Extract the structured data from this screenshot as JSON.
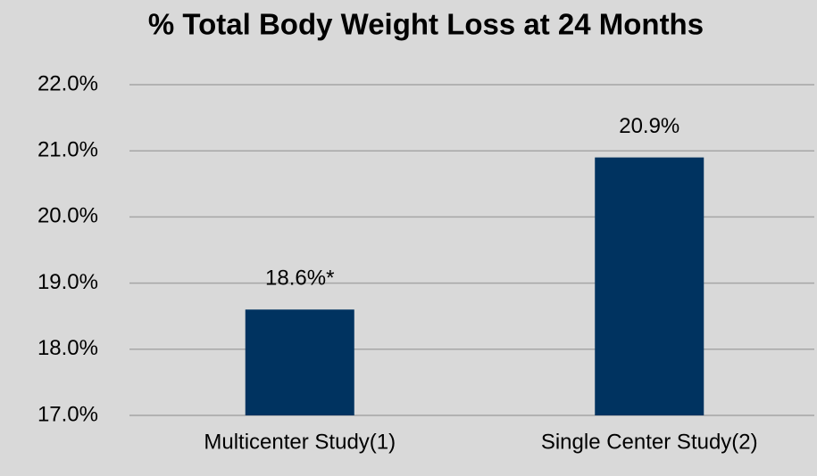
{
  "chart_data": {
    "type": "bar",
    "title": "% Total Body Weight Loss at 24 Months",
    "categories": [
      "Multicenter Study(1)",
      "Single Center Study(2)"
    ],
    "values": [
      18.6,
      20.9
    ],
    "value_labels": [
      "18.6%*",
      "20.9%"
    ],
    "color": "#003360",
    "ylim": [
      17,
      22
    ],
    "yticks": [
      {
        "value": 17,
        "label": "17.0%"
      },
      {
        "value": 18,
        "label": "18.0%"
      },
      {
        "value": 19,
        "label": "19.0%"
      },
      {
        "value": 20,
        "label": "20.0%"
      },
      {
        "value": 21,
        "label": "21.0%"
      },
      {
        "value": 22,
        "label": "22.0%"
      }
    ],
    "grid": true
  }
}
